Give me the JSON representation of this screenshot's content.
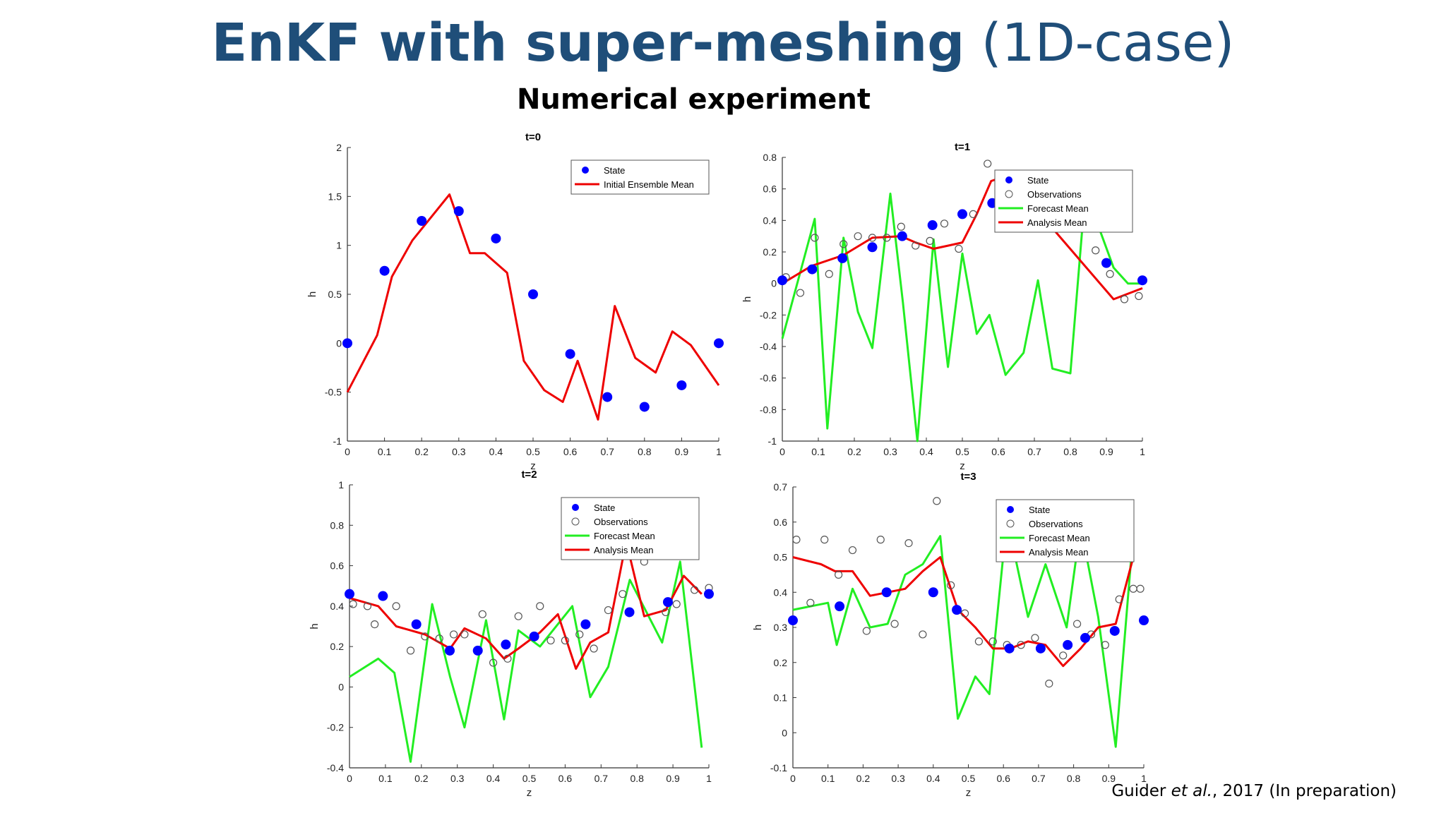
{
  "title": {
    "bold": "EnKF with super-meshing",
    "normal": " (1D-case)"
  },
  "subtitle": "Numerical experiment",
  "citation": {
    "author": "Guider ",
    "etal": "et al.",
    "rest": ", 2017 (In preparation)"
  },
  "colors": {
    "title": "#1f4e79",
    "state": "#0000ff",
    "forecast": "#22ee22",
    "analysis": "#ee0000",
    "observation": "#555555"
  },
  "chart_data": [
    {
      "type": "line",
      "title": "t=0",
      "xlabel": "z",
      "ylabel": "h",
      "xlim": [
        0,
        1
      ],
      "ylim": [
        -1,
        2
      ],
      "xticks": [
        "0",
        "0.1",
        "0.2",
        "0.3",
        "0.4",
        "0.5",
        "0.6",
        "0.7",
        "0.8",
        "0.9",
        "1"
      ],
      "yticks": [
        "-1",
        "-0.5",
        "0",
        "0.5",
        "1",
        "1.5",
        "2"
      ],
      "legend_position": "top-right",
      "series": [
        {
          "name": "State",
          "kind": "dot",
          "x": [
            0,
            0.1,
            0.2,
            0.3,
            0.4,
            0.5,
            0.6,
            0.7,
            0.8,
            0.9,
            1.0
          ],
          "y": [
            0.0,
            0.74,
            1.25,
            1.35,
            1.07,
            0.5,
            -0.11,
            -0.55,
            -0.65,
            -0.43,
            0.0
          ]
        },
        {
          "name": "Initial Ensemble Mean",
          "kind": "line",
          "color": "analysis",
          "x": [
            0,
            0.08,
            0.12,
            0.175,
            0.275,
            0.33,
            0.37,
            0.43,
            0.475,
            0.53,
            0.58,
            0.62,
            0.675,
            0.72,
            0.775,
            0.83,
            0.875,
            0.925,
            1.0
          ],
          "y": [
            -0.5,
            0.08,
            0.68,
            1.05,
            1.52,
            0.92,
            0.92,
            0.72,
            -0.18,
            -0.48,
            -0.6,
            -0.18,
            -0.78,
            0.38,
            -0.15,
            -0.3,
            0.12,
            -0.02,
            -0.43
          ]
        }
      ]
    },
    {
      "type": "line",
      "title": "t=1",
      "xlabel": "z",
      "ylabel": "h",
      "xlim": [
        0,
        1
      ],
      "ylim": [
        -1,
        0.8
      ],
      "xticks": [
        "0",
        "0.1",
        "0.2",
        "0.3",
        "0.4",
        "0.5",
        "0.6",
        "0.7",
        "0.8",
        "0.9",
        "1"
      ],
      "yticks": [
        "-1",
        "-0.8",
        "-0.6",
        "-0.4",
        "-0.2",
        "0",
        "0.2",
        "0.4",
        "0.6",
        "0.8"
      ],
      "legend_position": "top-right",
      "series": [
        {
          "name": "State",
          "kind": "dot",
          "x": [
            0,
            0.083,
            0.167,
            0.25,
            0.333,
            0.417,
            0.5,
            0.583,
            0.65,
            0.9,
            1.0
          ],
          "y": [
            0.02,
            0.09,
            0.16,
            0.23,
            0.3,
            0.37,
            0.44,
            0.51,
            0.58,
            0.13,
            0.02
          ]
        },
        {
          "name": "Observations",
          "kind": "circle",
          "x": [
            0.01,
            0.05,
            0.09,
            0.13,
            0.17,
            0.21,
            0.25,
            0.29,
            0.33,
            0.37,
            0.41,
            0.45,
            0.49,
            0.53,
            0.57,
            0.62,
            0.66,
            0.87,
            0.91,
            0.95,
            0.99
          ],
          "y": [
            0.04,
            -0.06,
            0.29,
            0.06,
            0.25,
            0.3,
            0.29,
            0.29,
            0.36,
            0.24,
            0.27,
            0.38,
            0.22,
            0.44,
            0.76,
            0.59,
            0.61,
            0.21,
            0.06,
            -0.1,
            -0.08
          ]
        },
        {
          "name": "Forecast Mean",
          "kind": "line",
          "color": "forecast",
          "x": [
            0,
            0.09,
            0.125,
            0.17,
            0.21,
            0.25,
            0.3,
            0.335,
            0.375,
            0.42,
            0.46,
            0.5,
            0.54,
            0.575,
            0.62,
            0.67,
            0.71,
            0.75,
            0.8,
            0.835,
            0.875,
            0.92,
            0.96,
            1.0
          ],
          "y": [
            -0.35,
            0.41,
            -0.92,
            0.29,
            -0.18,
            -0.41,
            0.57,
            -0.12,
            -1.0,
            0.28,
            -0.53,
            0.19,
            -0.32,
            -0.2,
            -0.58,
            -0.44,
            0.02,
            -0.54,
            -0.57,
            0.4,
            0.38,
            0.1,
            0.0,
            0.0
          ]
        },
        {
          "name": "Analysis Mean",
          "kind": "line",
          "color": "analysis",
          "x": [
            0,
            0.08,
            0.17,
            0.25,
            0.33,
            0.37,
            0.42,
            0.46,
            0.5,
            0.54,
            0.58,
            0.62,
            0.66,
            0.92,
            1.0
          ],
          "y": [
            0.0,
            0.11,
            0.18,
            0.29,
            0.3,
            0.26,
            0.22,
            0.24,
            0.26,
            0.44,
            0.65,
            0.68,
            0.59,
            -0.1,
            -0.03
          ]
        }
      ]
    },
    {
      "type": "line",
      "title": "t=2",
      "xlabel": "z",
      "ylabel": "h",
      "xlim": [
        0,
        1
      ],
      "ylim": [
        -0.4,
        1
      ],
      "xticks": [
        "0",
        "0.1",
        "0.2",
        "0.3",
        "0.4",
        "0.5",
        "0.6",
        "0.7",
        "0.8",
        "0.9",
        "1"
      ],
      "yticks": [
        "-0.4",
        "-0.2",
        "0",
        "0.2",
        "0.4",
        "0.6",
        "0.8",
        "1"
      ],
      "legend_position": "top-right",
      "series": [
        {
          "name": "State",
          "kind": "dot",
          "x": [
            0,
            0.093,
            0.186,
            0.279,
            0.357,
            0.435,
            0.514,
            0.657,
            0.779,
            0.886,
            1.0
          ],
          "y": [
            0.46,
            0.45,
            0.31,
            0.18,
            0.18,
            0.21,
            0.25,
            0.31,
            0.37,
            0.42,
            0.46
          ]
        },
        {
          "name": "Observations",
          "kind": "circle",
          "x": [
            0.01,
            0.05,
            0.07,
            0.13,
            0.17,
            0.21,
            0.25,
            0.29,
            0.32,
            0.37,
            0.4,
            0.44,
            0.47,
            0.53,
            0.56,
            0.6,
            0.64,
            0.68,
            0.72,
            0.76,
            0.82,
            0.88,
            0.91,
            0.96,
            1.0
          ],
          "y": [
            0.41,
            0.4,
            0.31,
            0.4,
            0.18,
            0.25,
            0.24,
            0.26,
            0.26,
            0.36,
            0.12,
            0.14,
            0.35,
            0.4,
            0.23,
            0.23,
            0.26,
            0.19,
            0.38,
            0.46,
            0.62,
            0.37,
            0.41,
            0.48,
            0.49
          ]
        },
        {
          "name": "Forecast Mean",
          "kind": "line",
          "color": "forecast",
          "x": [
            0,
            0.08,
            0.125,
            0.17,
            0.23,
            0.28,
            0.32,
            0.38,
            0.43,
            0.47,
            0.53,
            0.62,
            0.67,
            0.72,
            0.78,
            0.87,
            0.92,
            0.98
          ],
          "y": [
            0.05,
            0.14,
            0.07,
            -0.37,
            0.41,
            0.05,
            -0.2,
            0.33,
            -0.16,
            0.28,
            0.2,
            0.4,
            -0.05,
            0.1,
            0.53,
            0.22,
            0.62,
            -0.3
          ]
        },
        {
          "name": "Analysis Mean",
          "kind": "line",
          "color": "analysis",
          "x": [
            0,
            0.08,
            0.13,
            0.17,
            0.21,
            0.28,
            0.32,
            0.38,
            0.43,
            0.47,
            0.53,
            0.58,
            0.63,
            0.67,
            0.72,
            0.77,
            0.82,
            0.88,
            0.93,
            0.98
          ],
          "y": [
            0.44,
            0.4,
            0.3,
            0.28,
            0.26,
            0.19,
            0.29,
            0.24,
            0.14,
            0.19,
            0.27,
            0.36,
            0.09,
            0.22,
            0.27,
            0.72,
            0.35,
            0.38,
            0.55,
            0.46
          ]
        }
      ]
    },
    {
      "type": "line",
      "title": "t=3",
      "xlabel": "z",
      "ylabel": "h",
      "xlim": [
        0,
        1
      ],
      "ylim": [
        -0.1,
        0.7
      ],
      "xticks": [
        "0",
        "0.1",
        "0.2",
        "0.3",
        "0.4",
        "0.5",
        "0.6",
        "0.7",
        "0.8",
        "0.9",
        "1"
      ],
      "yticks": [
        "-0.1",
        "0",
        "0.1",
        "0.2",
        "0.3",
        "0.4",
        "0.5",
        "0.6",
        "0.7"
      ],
      "legend_position": "top-right",
      "series": [
        {
          "name": "State",
          "kind": "dot",
          "x": [
            0,
            0.133,
            0.267,
            0.4,
            0.467,
            0.617,
            0.706,
            0.783,
            0.833,
            0.917,
            1.0
          ],
          "y": [
            0.32,
            0.36,
            0.4,
            0.4,
            0.35,
            0.24,
            0.24,
            0.25,
            0.27,
            0.29,
            0.32
          ]
        },
        {
          "name": "Observations",
          "kind": "circle",
          "x": [
            0.01,
            0.05,
            0.09,
            0.13,
            0.17,
            0.21,
            0.25,
            0.29,
            0.33,
            0.37,
            0.41,
            0.45,
            0.49,
            0.53,
            0.57,
            0.61,
            0.65,
            0.69,
            0.73,
            0.77,
            0.81,
            0.85,
            0.89,
            0.93,
            0.97,
            0.99
          ],
          "y": [
            0.55,
            0.37,
            0.55,
            0.45,
            0.52,
            0.29,
            0.55,
            0.31,
            0.54,
            0.28,
            0.66,
            0.42,
            0.34,
            0.26,
            0.26,
            0.25,
            0.25,
            0.27,
            0.14,
            0.22,
            0.31,
            0.28,
            0.25,
            0.38,
            0.41,
            0.41
          ]
        },
        {
          "name": "Forecast Mean",
          "kind": "line",
          "color": "forecast",
          "x": [
            0,
            0.1,
            0.125,
            0.17,
            0.22,
            0.27,
            0.32,
            0.37,
            0.42,
            0.47,
            0.52,
            0.56,
            0.61,
            0.67,
            0.72,
            0.78,
            0.82,
            0.87,
            0.92,
            0.97
          ],
          "y": [
            0.35,
            0.37,
            0.25,
            0.41,
            0.3,
            0.31,
            0.45,
            0.48,
            0.56,
            0.04,
            0.16,
            0.11,
            0.61,
            0.33,
            0.48,
            0.3,
            0.59,
            0.33,
            -0.04,
            0.57
          ]
        },
        {
          "name": "Analysis Mean",
          "kind": "line",
          "color": "analysis",
          "x": [
            0,
            0.08,
            0.12,
            0.17,
            0.22,
            0.27,
            0.32,
            0.37,
            0.42,
            0.47,
            0.52,
            0.57,
            0.62,
            0.67,
            0.72,
            0.77,
            0.82,
            0.87,
            0.92,
            0.97
          ],
          "y": [
            0.5,
            0.48,
            0.46,
            0.46,
            0.39,
            0.4,
            0.41,
            0.46,
            0.5,
            0.35,
            0.3,
            0.24,
            0.24,
            0.26,
            0.25,
            0.19,
            0.24,
            0.3,
            0.31,
            0.5
          ]
        }
      ]
    }
  ]
}
